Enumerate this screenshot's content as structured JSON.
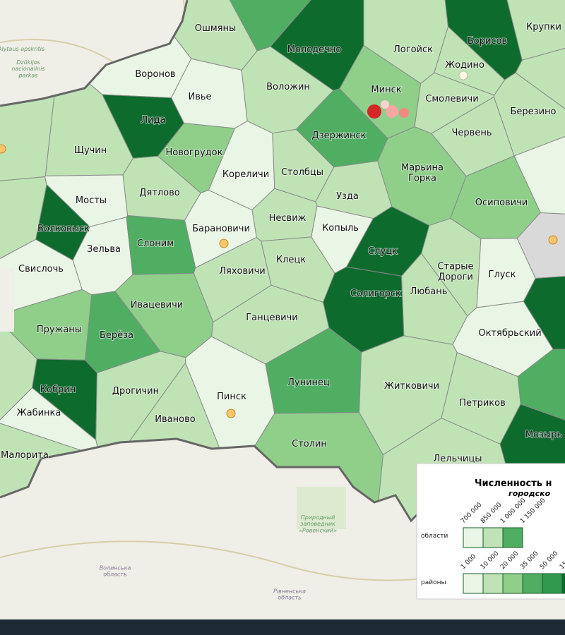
{
  "map_labels": {
    "districts": [
      "Ошмяны",
      "Молодечно",
      "Логойск",
      "Борисов",
      "Крупки",
      "Жодино",
      "Воронов",
      "Ивье",
      "Воложин",
      "Минск",
      "Смолевичи",
      "Березино",
      "Лида",
      "Щучин",
      "Новогрудок",
      "Дзержинск",
      "Червень",
      "Кореличи",
      "Столбцы",
      "Марьина\nГорка",
      "Дятлово",
      "Мосты",
      "Узда",
      "Осиповичи",
      "Волковыск",
      "Несвиж",
      "Барановичи",
      "Копыль",
      "Зельва",
      "Слоним",
      "Слуцк",
      "Клецк",
      "Ляховичи",
      "Свислочь",
      "Старые\nДороги",
      "Глуск",
      "Солигорск",
      "Любань",
      "Ивацевичи",
      "Ганцевичи",
      "Пружаны",
      "Берёза",
      "Октябрьский",
      "Лунинец",
      "Житковичи",
      "Кобрин",
      "Дрогичин",
      "Пинск",
      "Петриков",
      "Жабинка",
      "Иваново",
      "Мозырь",
      "Столин",
      "Лельчицы",
      "Малорита"
    ],
    "background": [
      "Alytaus apskritis",
      "Dzūkijos\nnacionalinis\nparkas",
      "Природный\nзаповедник\n«Ровенский»",
      "Волинська\nобласть",
      "Рівненська\nобласть"
    ]
  },
  "legend": {
    "title": "Численность н",
    "subtitle": "городско",
    "regions": {
      "label": "области",
      "ticks": [
        "700 000",
        "850 000",
        "1 000 000",
        "1 150 000"
      ]
    },
    "districts": {
      "label": "районы",
      "ticks": [
        "1 000",
        "10 000",
        "20 000",
        "35 000",
        "50 000",
        "15"
      ]
    }
  }
}
